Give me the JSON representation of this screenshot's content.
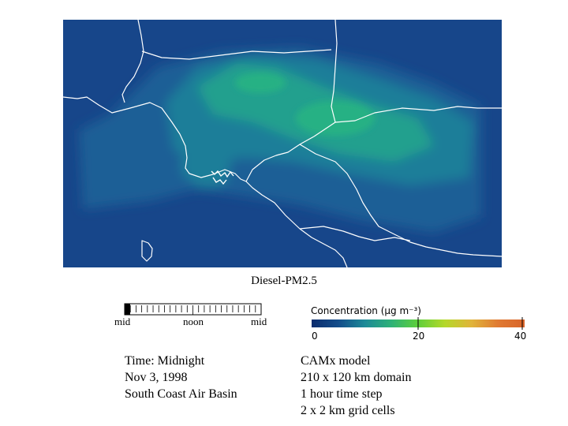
{
  "title": "Diesel-PM2.5",
  "clock": {
    "start_label": "mid",
    "middle_label": "noon",
    "end_label": "mid",
    "elapsed_fraction": 0.0
  },
  "legend": {
    "title": "Concentration (μg m⁻³)",
    "tick_labels": [
      "0",
      "20",
      "40"
    ],
    "colors": [
      "#0b2d6e",
      "#134c8a",
      "#1d8a98",
      "#2eb277",
      "#5fcf3a",
      "#b4d82a",
      "#e0b43a",
      "#e07a32",
      "#d9642a"
    ]
  },
  "time_info": {
    "line1": "Time: Midnight",
    "line2": "Nov 3, 1998",
    "line3": "South Coast Air Basin"
  },
  "model_info": {
    "line1": "CAMx model",
    "line2": "210 x 120 km domain",
    "line3": "1 hour time step",
    "line4": "2 x 2 km grid cells"
  },
  "map_colors": {
    "background": "#17468a",
    "low": "#1c5f96",
    "mid": "#1d7e99",
    "high": "#21a08e",
    "peak": "#26b184",
    "outline": "#ffffff"
  }
}
